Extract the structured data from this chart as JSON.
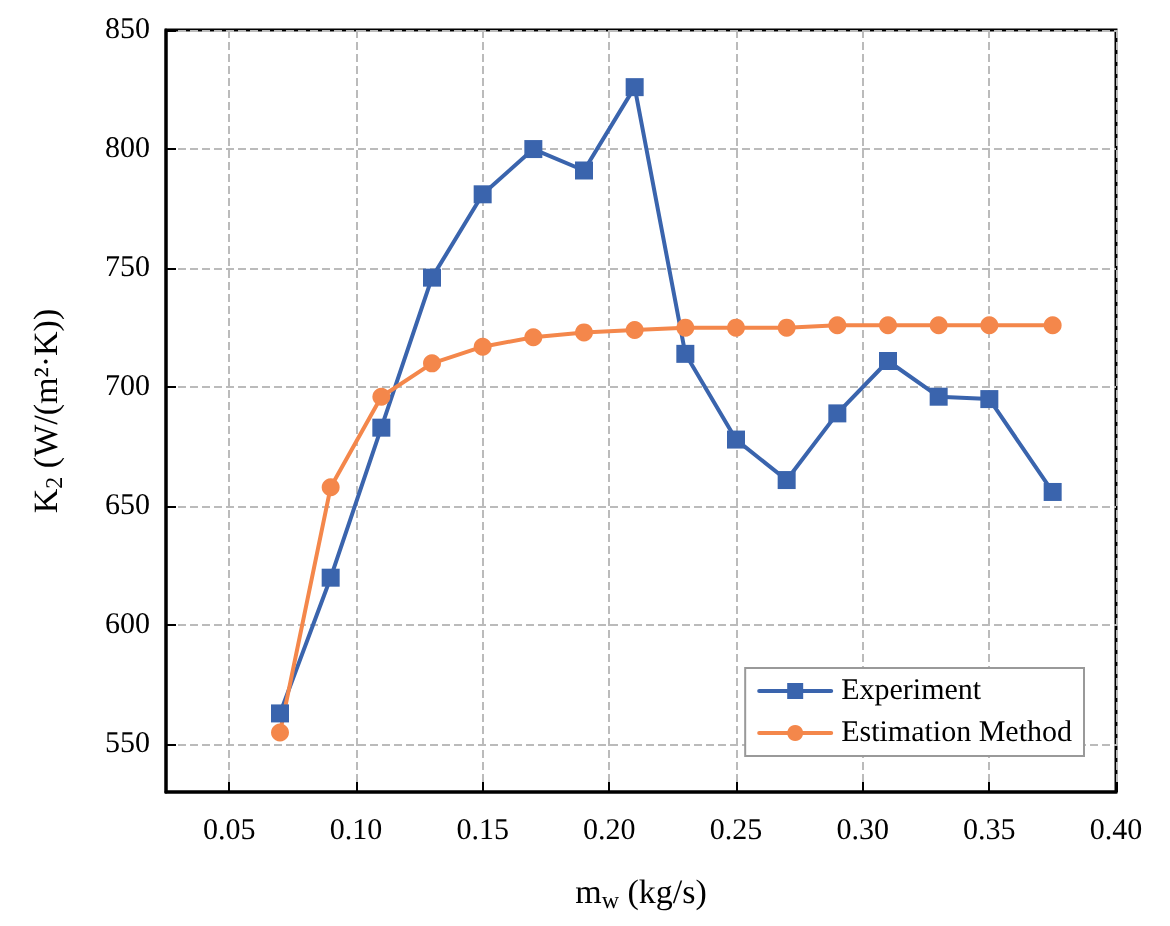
{
  "chart_data": {
    "type": "line",
    "xlabel": "m$_{w}$ (kg/s)",
    "ylabel": "K$_{2}$ (W/(m²·K))",
    "x": [
      0.07,
      0.09,
      0.11,
      0.13,
      0.15,
      0.17,
      0.19,
      0.21,
      0.23,
      0.25,
      0.27,
      0.29,
      0.31,
      0.33,
      0.35,
      0.375
    ],
    "series": [
      {
        "name": "Experiment",
        "color": "#3a64ad",
        "marker": "square",
        "values": [
          563,
          620,
          683,
          746,
          781,
          800,
          791,
          826,
          714,
          678,
          661,
          689,
          711,
          696,
          695,
          656
        ]
      },
      {
        "name": "Estimation Method",
        "color": "#f4874b",
        "marker": "circle",
        "values": [
          555,
          658,
          696,
          710,
          717,
          721,
          723,
          724,
          725,
          725,
          725,
          726,
          726,
          726,
          726,
          726
        ]
      }
    ],
    "xlim": [
      0.025,
      0.4
    ],
    "xticks": [
      0.05,
      {
        "value": 0.1,
        "label": "0.10"
      },
      0.15,
      {
        "value": 0.2,
        "label": "0.20"
      },
      0.25,
      {
        "value": 0.3,
        "label": "0.30"
      },
      0.35,
      {
        "value": 0.4,
        "label": "0.40"
      }
    ],
    "ylim": [
      530,
      850
    ],
    "yticks": [
      550,
      600,
      650,
      700,
      750,
      800,
      850
    ],
    "grid": true,
    "legend": "bottom right",
    "line_style": "solid"
  }
}
